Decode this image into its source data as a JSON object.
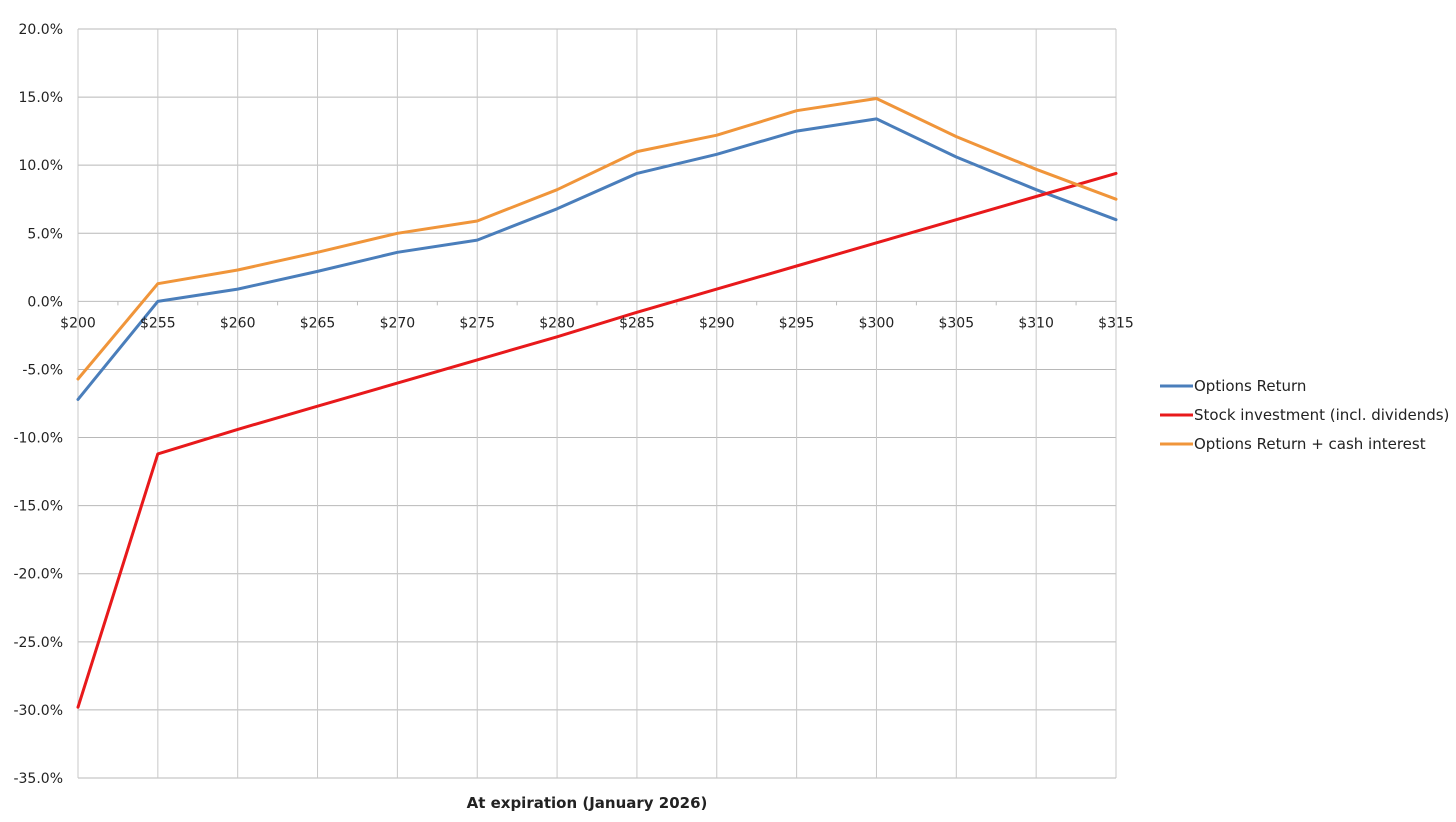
{
  "chart_data": {
    "type": "line",
    "title": "",
    "xlabel": "At expiration (January 2026)",
    "ylabel": "",
    "categories": [
      "$200",
      "$255",
      "$260",
      "$265",
      "$270",
      "$275",
      "$280",
      "$285",
      "$290",
      "$295",
      "$300",
      "$305",
      "$310",
      "$315"
    ],
    "y_ticks": [
      "20.0%",
      "15.0%",
      "10.0%",
      "5.0%",
      "0.0%",
      "-5.0%",
      "-10.0%",
      "-15.0%",
      "-20.0%",
      "-25.0%",
      "-30.0%",
      "-35.0%"
    ],
    "ylim": [
      -35,
      20
    ],
    "y_unit": "%",
    "grid": true,
    "legend_position": "right",
    "series": [
      {
        "name": "Options Return",
        "color": "#4a7ebb",
        "values": [
          -7.2,
          0.0,
          0.9,
          2.2,
          3.6,
          4.5,
          6.8,
          9.4,
          10.8,
          12.5,
          13.4,
          10.6,
          8.2,
          6.0
        ]
      },
      {
        "name": "Stock investment (incl. dividends)",
        "color": "#e8191b",
        "values": [
          -29.8,
          -11.2,
          -9.4,
          -7.7,
          -6.0,
          -4.3,
          -2.6,
          -0.8,
          0.9,
          2.6,
          4.3,
          6.0,
          7.7,
          9.4
        ]
      },
      {
        "name": "Options Return + cash interest",
        "color": "#f0953a",
        "values": [
          -5.7,
          1.3,
          2.3,
          3.6,
          5.0,
          5.9,
          8.2,
          11.0,
          12.2,
          14.0,
          14.9,
          12.1,
          9.7,
          7.5
        ]
      }
    ]
  }
}
